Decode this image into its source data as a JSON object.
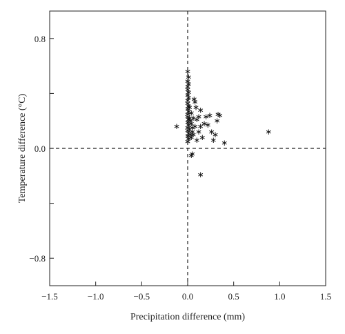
{
  "chart_data": {
    "type": "scatter",
    "title": "",
    "xlabel": "Precipitation difference (mm)",
    "ylabel": "Temperature difference (°C)",
    "xlim": [
      -1.5,
      1.5
    ],
    "ylim": [
      -1.0,
      1.0
    ],
    "x_ticks": [
      -1.5,
      -1.0,
      -0.5,
      0.0,
      0.5,
      1.0,
      1.5
    ],
    "x_tick_labels": [
      "−1.5",
      "−1.0",
      "−0.5",
      "0.0",
      "0.5",
      "1.0",
      "1.5"
    ],
    "y_ticks": [
      0.8,
      0.4,
      0.0,
      -0.4,
      -0.8
    ],
    "y_tick_labels": [
      "0.8",
      "",
      "0.0",
      "",
      "−0.8"
    ],
    "grid": false,
    "reference_lines": {
      "x": 0.0,
      "y": 0.0,
      "style": "dashed"
    },
    "marker": "asterisk",
    "series": [
      {
        "points": [
          [
            0.0,
            0.56
          ],
          [
            0.01,
            0.52
          ],
          [
            0.0,
            0.49
          ],
          [
            0.01,
            0.47
          ],
          [
            0.0,
            0.45
          ],
          [
            0.0,
            0.43
          ],
          [
            0.01,
            0.41
          ],
          [
            0.0,
            0.39
          ],
          [
            0.01,
            0.37
          ],
          [
            0.0,
            0.35
          ],
          [
            0.0,
            0.33
          ],
          [
            0.01,
            0.31
          ],
          [
            0.0,
            0.29
          ],
          [
            0.01,
            0.27
          ],
          [
            0.0,
            0.25
          ],
          [
            0.0,
            0.23
          ],
          [
            0.01,
            0.21
          ],
          [
            0.0,
            0.19
          ],
          [
            0.01,
            0.17
          ],
          [
            0.0,
            0.15
          ],
          [
            0.0,
            0.13
          ],
          [
            0.01,
            0.11
          ],
          [
            0.0,
            0.09
          ],
          [
            0.01,
            0.07
          ],
          [
            0.0,
            0.05
          ],
          [
            0.02,
            0.3
          ],
          [
            0.02,
            0.22
          ],
          [
            0.02,
            0.14
          ],
          [
            0.03,
            0.2
          ],
          [
            0.03,
            0.1
          ],
          [
            0.04,
            0.26
          ],
          [
            0.04,
            0.18
          ],
          [
            0.04,
            0.08
          ],
          [
            0.05,
            0.15
          ],
          [
            0.05,
            0.12
          ],
          [
            0.06,
            0.22
          ],
          [
            0.06,
            0.1
          ],
          [
            0.07,
            0.36
          ],
          [
            0.08,
            0.34
          ],
          [
            0.08,
            0.16
          ],
          [
            0.09,
            0.3
          ],
          [
            0.1,
            0.21
          ],
          [
            0.1,
            0.06
          ],
          [
            0.12,
            0.23
          ],
          [
            0.12,
            0.12
          ],
          [
            0.14,
            0.16
          ],
          [
            0.14,
            0.28
          ],
          [
            0.16,
            0.08
          ],
          [
            0.18,
            0.18
          ],
          [
            0.2,
            0.23
          ],
          [
            0.22,
            0.17
          ],
          [
            0.24,
            0.24
          ],
          [
            0.26,
            0.12
          ],
          [
            0.28,
            0.06
          ],
          [
            0.3,
            0.1
          ],
          [
            0.32,
            0.2
          ],
          [
            0.33,
            0.25
          ],
          [
            0.35,
            0.24
          ],
          [
            0.4,
            0.04
          ],
          [
            0.88,
            0.12
          ],
          [
            -0.12,
            0.16
          ],
          [
            0.05,
            -0.04
          ],
          [
            0.04,
            -0.05
          ],
          [
            0.14,
            -0.19
          ]
        ]
      }
    ]
  }
}
